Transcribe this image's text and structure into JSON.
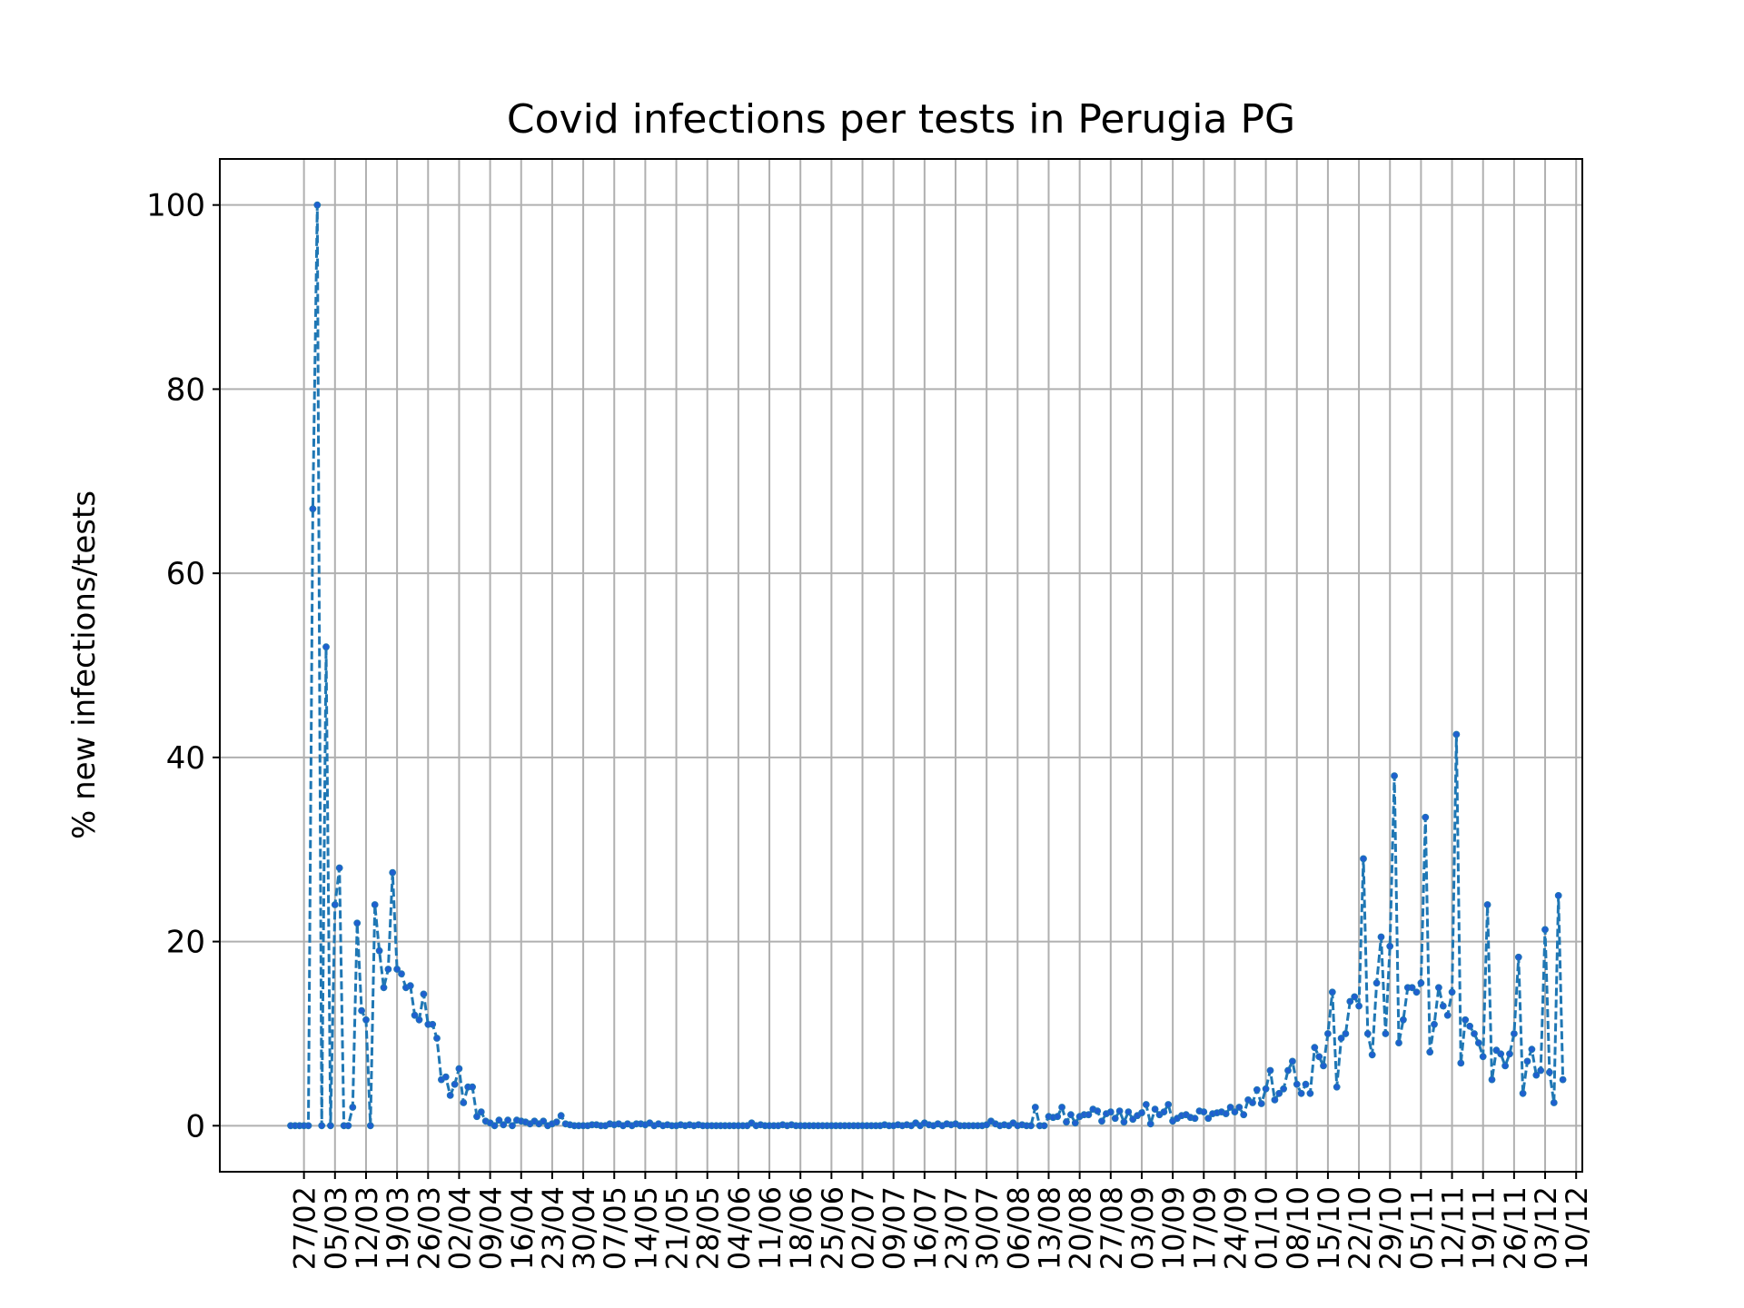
{
  "chart_data": {
    "type": "line",
    "title": "Covid infections per tests in Perugia PG",
    "xlabel": "",
    "ylabel": "% new infections/tests",
    "ylim": [
      -5,
      105
    ],
    "yticks": [
      0,
      20,
      40,
      60,
      80,
      100
    ],
    "grid": true,
    "line_style": "dashed with dot markers",
    "colors": {
      "line": "#1f77b4",
      "marker": "#1f5fd0",
      "grid": "#b0b0b0",
      "axes": "#000000"
    },
    "start_date": "24/02",
    "x_ticks": [
      {
        "day": 3,
        "label": "27/02"
      },
      {
        "day": 10,
        "label": "05/03"
      },
      {
        "day": 17,
        "label": "12/03"
      },
      {
        "day": 24,
        "label": "19/03"
      },
      {
        "day": 31,
        "label": "26/03"
      },
      {
        "day": 38,
        "label": "02/04"
      },
      {
        "day": 45,
        "label": "09/04"
      },
      {
        "day": 52,
        "label": "16/04"
      },
      {
        "day": 59,
        "label": "23/04"
      },
      {
        "day": 66,
        "label": "30/04"
      },
      {
        "day": 73,
        "label": "07/05"
      },
      {
        "day": 80,
        "label": "14/05"
      },
      {
        "day": 87,
        "label": "21/05"
      },
      {
        "day": 94,
        "label": "28/05"
      },
      {
        "day": 101,
        "label": "04/06"
      },
      {
        "day": 108,
        "label": "11/06"
      },
      {
        "day": 115,
        "label": "18/06"
      },
      {
        "day": 122,
        "label": "25/06"
      },
      {
        "day": 129,
        "label": "02/07"
      },
      {
        "day": 136,
        "label": "09/07"
      },
      {
        "day": 143,
        "label": "16/07"
      },
      {
        "day": 150,
        "label": "23/07"
      },
      {
        "day": 157,
        "label": "30/07"
      },
      {
        "day": 164,
        "label": "06/08"
      },
      {
        "day": 171,
        "label": "13/08"
      },
      {
        "day": 178,
        "label": "20/08"
      },
      {
        "day": 185,
        "label": "27/08"
      },
      {
        "day": 192,
        "label": "03/09"
      },
      {
        "day": 199,
        "label": "10/09"
      },
      {
        "day": 206,
        "label": "17/09"
      },
      {
        "day": 213,
        "label": "24/09"
      },
      {
        "day": 220,
        "label": "01/10"
      },
      {
        "day": 227,
        "label": "08/10"
      },
      {
        "day": 234,
        "label": "15/10"
      },
      {
        "day": 241,
        "label": "22/10"
      },
      {
        "day": 248,
        "label": "29/10"
      },
      {
        "day": 255,
        "label": "05/11"
      },
      {
        "day": 262,
        "label": "12/11"
      },
      {
        "day": 269,
        "label": "19/11"
      },
      {
        "day": 276,
        "label": "26/11"
      },
      {
        "day": 283,
        "label": "03/12"
      },
      {
        "day": 290,
        "label": "10/12"
      }
    ],
    "series": [
      {
        "name": "% new infections/tests",
        "x_start_day": 0,
        "values": [
          0,
          0,
          0,
          0,
          0,
          67,
          100,
          0,
          52,
          0,
          24,
          28,
          0,
          0,
          2,
          22,
          12.5,
          11.5,
          0,
          24,
          19,
          15,
          17,
          27.5,
          17,
          16.5,
          15,
          15.2,
          12,
          11.5,
          14.3,
          11,
          11,
          9.5,
          5,
          5.3,
          3.3,
          4.5,
          6.2,
          2.5,
          4.2,
          4.2,
          1,
          1.5,
          0.5,
          0.3,
          0,
          0.6,
          0.1,
          0.6,
          0,
          0.6,
          0.5,
          0.4,
          0.2,
          0.5,
          0.2,
          0.5,
          0,
          0.2,
          0.4,
          1.1,
          0.2,
          0.1,
          0,
          0,
          0,
          0,
          0.1,
          0.1,
          0,
          0,
          0.2,
          0.1,
          0.2,
          0,
          0.2,
          0,
          0.2,
          0.2,
          0.1,
          0.3,
          0,
          0.2,
          0,
          0.1,
          0,
          0,
          0.1,
          0,
          0.1,
          0,
          0.1,
          0,
          0,
          0,
          0,
          0,
          0,
          0,
          0,
          0,
          0,
          0,
          0.3,
          0,
          0.1,
          0,
          0,
          0,
          0,
          0.1,
          0,
          0.1,
          0,
          0,
          0,
          0,
          0,
          0,
          0,
          0,
          0,
          0,
          0,
          0,
          0,
          0,
          0,
          0,
          0,
          0,
          0,
          0,
          0.1,
          0,
          0,
          0.1,
          0,
          0.1,
          0,
          0.3,
          0,
          0.3,
          0.1,
          0,
          0.2,
          0,
          0.2,
          0.1,
          0.2,
          0,
          0,
          0,
          0,
          0,
          0,
          0.1,
          0.5,
          0.2,
          0,
          0.1,
          0,
          0.3,
          0,
          0.1,
          0,
          0,
          2,
          0,
          0,
          1,
          0.9,
          1,
          2,
          0.4,
          1.2,
          0.3,
          1,
          1.2,
          1.2,
          1.8,
          1.6,
          0.5,
          1.3,
          1.5,
          0.8,
          1.6,
          0.4,
          1.5,
          0.7,
          1.1,
          1.4,
          2.3,
          0.2,
          1.8,
          1.2,
          1.5,
          2.3,
          0.5,
          0.8,
          1.1,
          1.2,
          0.9,
          0.8,
          1.6,
          1.5,
          0.8,
          1.3,
          1.4,
          1.5,
          1.3,
          2,
          1.5,
          2,
          1.2,
          2.8,
          2.5,
          3.9,
          2.4,
          4,
          6,
          2.8,
          3.5,
          4,
          6,
          7,
          4.5,
          3.5,
          4.5,
          3.5,
          8.5,
          7.5,
          6.5,
          10,
          14.5,
          4.2,
          9.5,
          10,
          13.5,
          14,
          13,
          29,
          10,
          7.7,
          15.5,
          20.5,
          10,
          19.5,
          38,
          9,
          11.5,
          15,
          15,
          14.5,
          15.5,
          33.5,
          8,
          11,
          15,
          13,
          12,
          14.5,
          42.5,
          6.8,
          11.5,
          10.8,
          10,
          9,
          7.5,
          24,
          5,
          8.2,
          7.8,
          6.5,
          7.8,
          10,
          18.3,
          3.5,
          7,
          8.3,
          5.5,
          6,
          21.3,
          5.8,
          2.5,
          25,
          5
        ]
      }
    ]
  }
}
